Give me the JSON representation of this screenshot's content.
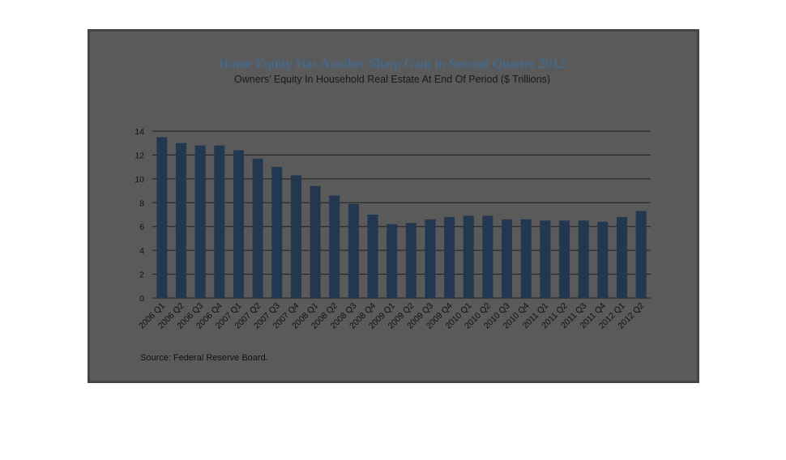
{
  "chart_data": {
    "type": "bar",
    "title": "Home Equity Has Another Sharp Gain in Second Quarter 2012",
    "subtitle": "Owners’ Equity In Household Real Estate At End Of Period ($ Trillions)",
    "source": "Source:  Federal Reserve Board.",
    "categories": [
      "2006 Q1",
      "2006 Q2",
      "2006 Q3",
      "2006 Q4",
      "2007 Q1",
      "2007 Q2",
      "2007 Q3",
      "2007 Q4",
      "2008 Q1",
      "2008 Q2",
      "2008 Q3",
      "2008 Q4",
      "2009 Q1",
      "2009 Q2",
      "2009 Q3",
      "2009 Q4",
      "2010 Q1",
      "2010 Q2",
      "2010 Q3",
      "2010 Q4",
      "2011 Q1",
      "2011 Q2",
      "2011 Q3",
      "2011 Q4",
      "2012 Q1",
      "2012 Q2"
    ],
    "values": [
      13.5,
      13.0,
      12.8,
      12.8,
      12.4,
      11.7,
      11.0,
      10.3,
      9.4,
      8.6,
      7.9,
      7.0,
      6.2,
      6.3,
      6.6,
      6.8,
      6.9,
      6.9,
      6.6,
      6.6,
      6.5,
      6.5,
      6.5,
      6.4,
      6.8,
      7.3
    ],
    "yticks": [
      "0",
      "2",
      "4",
      "6",
      "8",
      "10",
      "12",
      "14"
    ],
    "ylim": [
      0,
      14
    ],
    "grid": true,
    "bar_color": "#243750",
    "background_color": "#5a5a5a"
  }
}
